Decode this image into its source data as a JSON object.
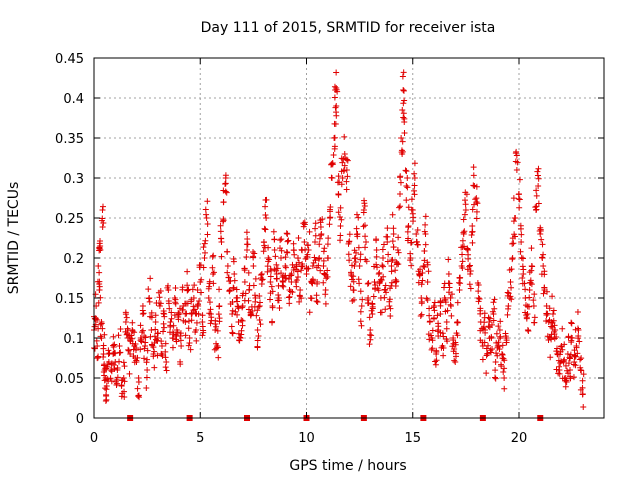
{
  "colors": {
    "series": "#e00000",
    "grid": "#a0a0a0",
    "axis": "#000000",
    "background": "#ffffff"
  },
  "chart_data": {
    "type": "scatter",
    "title": "Day 111 of 2015, SRMTID for receiver ista",
    "xlabel": "GPS time / hours",
    "ylabel": "SRMTID / TECUs",
    "xlim": [
      0,
      24
    ],
    "ylim": [
      0,
      0.45
    ],
    "xticks": [
      0,
      5,
      10,
      15,
      20
    ],
    "xtick_labels": [
      "0",
      "5",
      "10",
      "15",
      "20"
    ],
    "yticks": [
      0,
      0.05,
      0.1,
      0.15,
      0.2,
      0.25,
      0.3,
      0.35,
      0.4,
      0.45
    ],
    "ytick_labels": [
      "0",
      "0.05",
      "0.1",
      "0.15",
      "0.2",
      "0.25",
      "0.3",
      "0.35",
      "0.4",
      "0.45"
    ],
    "grid": true,
    "marker": "+",
    "series": [
      {
        "name": "SRMTID",
        "points": [
          [
            0.0,
            0.11
          ],
          [
            0.1,
            0.14
          ],
          [
            0.15,
            0.09
          ],
          [
            0.2,
            0.19
          ],
          [
            0.25,
            0.16
          ],
          [
            0.3,
            0.21
          ],
          [
            0.35,
            0.12
          ],
          [
            0.4,
            0.26
          ],
          [
            0.45,
            0.08
          ],
          [
            0.5,
            0.06
          ],
          [
            0.55,
            0.05
          ],
          [
            0.6,
            0.04
          ],
          [
            0.7,
            0.07
          ],
          [
            0.8,
            0.06
          ],
          [
            0.9,
            0.08
          ],
          [
            1.0,
            0.07
          ],
          [
            1.1,
            0.06
          ],
          [
            1.2,
            0.09
          ],
          [
            1.3,
            0.04
          ],
          [
            1.4,
            0.05
          ],
          [
            1.5,
            0.12
          ],
          [
            1.6,
            0.1
          ],
          [
            1.7,
            0.08
          ],
          [
            1.8,
            0.11
          ],
          [
            1.9,
            0.09
          ],
          [
            2.0,
            0.07
          ],
          [
            2.1,
            0.05
          ],
          [
            2.2,
            0.1
          ],
          [
            2.3,
            0.13
          ],
          [
            2.4,
            0.09
          ],
          [
            2.5,
            0.06
          ],
          [
            2.6,
            0.15
          ],
          [
            2.7,
            0.11
          ],
          [
            2.8,
            0.08
          ],
          [
            2.9,
            0.12
          ],
          [
            3.0,
            0.1
          ],
          [
            3.1,
            0.14
          ],
          [
            3.2,
            0.09
          ],
          [
            3.3,
            0.13
          ],
          [
            3.4,
            0.07
          ],
          [
            3.5,
            0.16
          ],
          [
            3.6,
            0.12
          ],
          [
            3.7,
            0.1
          ],
          [
            3.8,
            0.15
          ],
          [
            3.9,
            0.11
          ],
          [
            4.0,
            0.13
          ],
          [
            4.1,
            0.09
          ],
          [
            4.2,
            0.14
          ],
          [
            4.3,
            0.12
          ],
          [
            4.4,
            0.16
          ],
          [
            4.5,
            0.1
          ],
          [
            4.6,
            0.13
          ],
          [
            4.7,
            0.15
          ],
          [
            4.8,
            0.11
          ],
          [
            4.9,
            0.14
          ],
          [
            5.0,
            0.17
          ],
          [
            5.1,
            0.12
          ],
          [
            5.2,
            0.2
          ],
          [
            5.3,
            0.25
          ],
          [
            5.4,
            0.15
          ],
          [
            5.5,
            0.13
          ],
          [
            5.6,
            0.18
          ],
          [
            5.7,
            0.11
          ],
          [
            5.8,
            0.09
          ],
          [
            5.9,
            0.14
          ],
          [
            6.0,
            0.22
          ],
          [
            6.1,
            0.27
          ],
          [
            6.2,
            0.3
          ],
          [
            6.3,
            0.19
          ],
          [
            6.4,
            0.16
          ],
          [
            6.5,
            0.13
          ],
          [
            6.6,
            0.18
          ],
          [
            6.7,
            0.15
          ],
          [
            6.8,
            0.12
          ],
          [
            6.9,
            0.1
          ],
          [
            7.0,
            0.14
          ],
          [
            7.1,
            0.17
          ],
          [
            7.2,
            0.21
          ],
          [
            7.3,
            0.16
          ],
          [
            7.4,
            0.13
          ],
          [
            7.5,
            0.19
          ],
          [
            7.6,
            0.15
          ],
          [
            7.7,
            0.11
          ],
          [
            7.8,
            0.14
          ],
          [
            7.9,
            0.18
          ],
          [
            8.0,
            0.22
          ],
          [
            8.1,
            0.25
          ],
          [
            8.2,
            0.2
          ],
          [
            8.3,
            0.17
          ],
          [
            8.4,
            0.14
          ],
          [
            8.5,
            0.21
          ],
          [
            8.6,
            0.18
          ],
          [
            8.7,
            0.15
          ],
          [
            8.8,
            0.2
          ],
          [
            8.9,
            0.17
          ],
          [
            9.0,
            0.19
          ],
          [
            9.1,
            0.23
          ],
          [
            9.2,
            0.16
          ],
          [
            9.3,
            0.18
          ],
          [
            9.4,
            0.21
          ],
          [
            9.5,
            0.17
          ],
          [
            9.6,
            0.2
          ],
          [
            9.7,
            0.16
          ],
          [
            9.8,
            0.19
          ],
          [
            9.9,
            0.22
          ],
          [
            10.0,
            0.18
          ],
          [
            10.1,
            0.21
          ],
          [
            10.2,
            0.15
          ],
          [
            10.3,
            0.19
          ],
          [
            10.4,
            0.22
          ],
          [
            10.5,
            0.17
          ],
          [
            10.6,
            0.2
          ],
          [
            10.7,
            0.23
          ],
          [
            10.8,
            0.19
          ],
          [
            10.9,
            0.16
          ],
          [
            11.0,
            0.2
          ],
          [
            11.1,
            0.25
          ],
          [
            11.2,
            0.3
          ],
          [
            11.3,
            0.35
          ],
          [
            11.35,
            0.41
          ],
          [
            11.4,
            0.39
          ],
          [
            11.5,
            0.28
          ],
          [
            11.6,
            0.24
          ],
          [
            11.7,
            0.3
          ],
          [
            11.8,
            0.33
          ],
          [
            11.9,
            0.31
          ],
          [
            12.0,
            0.22
          ],
          [
            12.1,
            0.18
          ],
          [
            12.2,
            0.16
          ],
          [
            12.3,
            0.2
          ],
          [
            12.4,
            0.23
          ],
          [
            12.5,
            0.19
          ],
          [
            12.6,
            0.14
          ],
          [
            12.7,
            0.26
          ],
          [
            12.8,
            0.22
          ],
          [
            12.9,
            0.15
          ],
          [
            13.0,
            0.11
          ],
          [
            13.1,
            0.13
          ],
          [
            13.2,
            0.17
          ],
          [
            13.3,
            0.21
          ],
          [
            13.4,
            0.18
          ],
          [
            13.5,
            0.15
          ],
          [
            13.6,
            0.2
          ],
          [
            13.7,
            0.16
          ],
          [
            13.8,
            0.22
          ],
          [
            13.9,
            0.14
          ],
          [
            14.0,
            0.19
          ],
          [
            14.1,
            0.23
          ],
          [
            14.2,
            0.17
          ],
          [
            14.3,
            0.21
          ],
          [
            14.4,
            0.28
          ],
          [
            14.5,
            0.33
          ],
          [
            14.55,
            0.41
          ],
          [
            14.6,
            0.37
          ],
          [
            14.7,
            0.29
          ],
          [
            14.8,
            0.24
          ],
          [
            14.9,
            0.2
          ],
          [
            15.0,
            0.26
          ],
          [
            15.1,
            0.3
          ],
          [
            15.2,
            0.22
          ],
          [
            15.3,
            0.18
          ],
          [
            15.4,
            0.15
          ],
          [
            15.5,
            0.19
          ],
          [
            15.6,
            0.23
          ],
          [
            15.7,
            0.17
          ],
          [
            15.8,
            0.12
          ],
          [
            15.9,
            0.1
          ],
          [
            16.0,
            0.14
          ],
          [
            16.1,
            0.08
          ],
          [
            16.2,
            0.11
          ],
          [
            16.3,
            0.13
          ],
          [
            16.4,
            0.09
          ],
          [
            16.5,
            0.15
          ],
          [
            16.6,
            0.12
          ],
          [
            16.7,
            0.18
          ],
          [
            16.8,
            0.14
          ],
          [
            16.9,
            0.1
          ],
          [
            17.0,
            0.07
          ],
          [
            17.1,
            0.12
          ],
          [
            17.2,
            0.16
          ],
          [
            17.3,
            0.19
          ],
          [
            17.4,
            0.23
          ],
          [
            17.5,
            0.26
          ],
          [
            17.6,
            0.21
          ],
          [
            17.7,
            0.18
          ],
          [
            17.8,
            0.24
          ],
          [
            17.9,
            0.29
          ],
          [
            18.0,
            0.27
          ],
          [
            18.1,
            0.15
          ],
          [
            18.2,
            0.12
          ],
          [
            18.3,
            0.09
          ],
          [
            18.4,
            0.11
          ],
          [
            18.5,
            0.08
          ],
          [
            18.6,
            0.12
          ],
          [
            18.7,
            0.1
          ],
          [
            18.8,
            0.13
          ],
          [
            18.9,
            0.07
          ],
          [
            19.0,
            0.09
          ],
          [
            19.1,
            0.11
          ],
          [
            19.2,
            0.08
          ],
          [
            19.3,
            0.05
          ],
          [
            19.4,
            0.1
          ],
          [
            19.5,
            0.14
          ],
          [
            19.6,
            0.17
          ],
          [
            19.7,
            0.2
          ],
          [
            19.8,
            0.25
          ],
          [
            19.9,
            0.31
          ],
          [
            20.0,
            0.28
          ],
          [
            20.1,
            0.22
          ],
          [
            20.2,
            0.18
          ],
          [
            20.3,
            0.15
          ],
          [
            20.4,
            0.13
          ],
          [
            20.5,
            0.16
          ],
          [
            20.6,
            0.19
          ],
          [
            20.7,
            0.14
          ],
          [
            20.8,
            0.26
          ],
          [
            20.9,
            0.29
          ],
          [
            21.0,
            0.23
          ],
          [
            21.1,
            0.2
          ],
          [
            21.2,
            0.16
          ],
          [
            21.3,
            0.14
          ],
          [
            21.4,
            0.12
          ],
          [
            21.5,
            0.1
          ],
          [
            21.6,
            0.13
          ],
          [
            21.7,
            0.11
          ],
          [
            21.8,
            0.08
          ],
          [
            21.9,
            0.06
          ],
          [
            22.0,
            0.09
          ],
          [
            22.1,
            0.07
          ],
          [
            22.2,
            0.05
          ],
          [
            22.3,
            0.08
          ],
          [
            22.4,
            0.06
          ],
          [
            22.5,
            0.1
          ],
          [
            22.6,
            0.07
          ],
          [
            22.7,
            0.09
          ],
          [
            22.8,
            0.11
          ],
          [
            22.9,
            0.06
          ],
          [
            23.0,
            0.03
          ]
        ]
      }
    ],
    "axis_markers": [
      1.7,
      4.5,
      7.2,
      10.0,
      12.7,
      15.5,
      18.3,
      21.0
    ]
  }
}
